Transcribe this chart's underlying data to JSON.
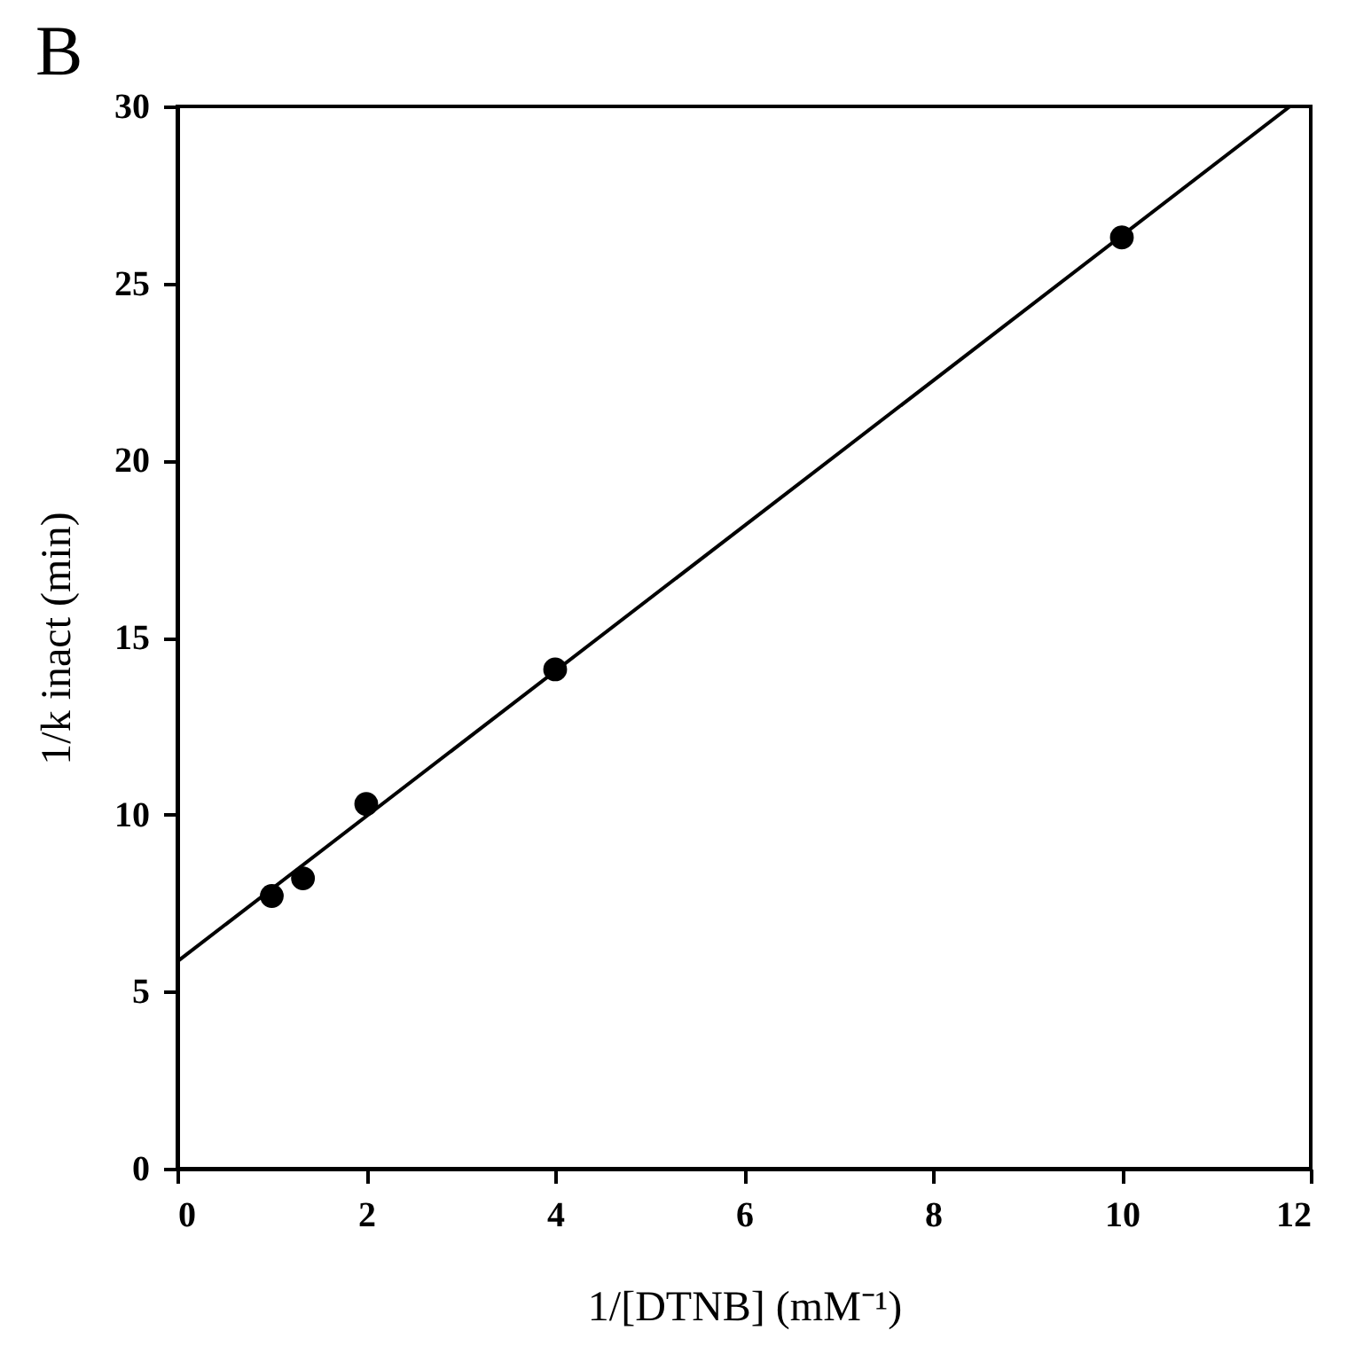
{
  "chart_data": {
    "type": "scatter",
    "title": "B",
    "xlabel": "1/[DTNB] (mM⁻¹)",
    "ylabel": "1/k inact (min)",
    "x": [
      1,
      1.33,
      2,
      4,
      10
    ],
    "series": [
      {
        "color": "#000000",
        "values": [
          7.7,
          8.2,
          10.3,
          14.1,
          26.3
        ],
        "marker": "circle"
      },
      {
        "type": "line",
        "color": "#000000",
        "x": [
          0,
          11.78
        ],
        "values": [
          5.85,
          30
        ],
        "line_style": "solid",
        "marker": "none"
      }
    ],
    "xlim": [
      0,
      12
    ],
    "ylim": [
      0,
      30
    ],
    "xticks": [
      0,
      2,
      4,
      6,
      8,
      10,
      12
    ],
    "yticks": [
      0,
      5,
      10,
      15,
      20,
      25,
      30
    ],
    "grid": false
  }
}
